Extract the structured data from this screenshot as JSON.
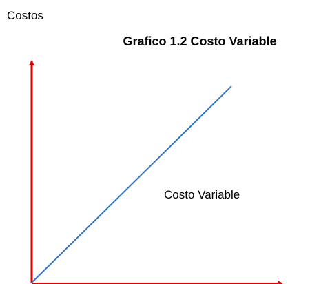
{
  "diagram": {
    "y_axis_label": "Costos",
    "title": "Grafico 1.2 Costo Variable",
    "line_label": "Costo Variable"
  }
}
